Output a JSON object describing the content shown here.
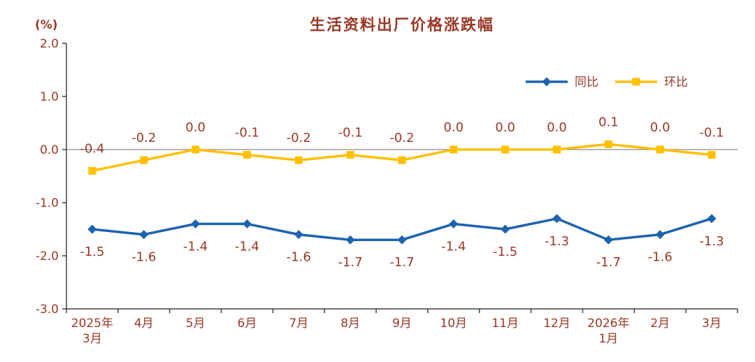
{
  "chart_data": {
    "type": "line",
    "title": "生活资料出厂价格涨跌幅",
    "unit_label": "(%)",
    "categories": [
      "2025年\n3月",
      "4月",
      "5月",
      "6月",
      "7月",
      "8月",
      "9月",
      "10月",
      "11月",
      "12月",
      "2026年\n1月",
      "2月",
      "3月"
    ],
    "series": [
      {
        "key": "yoy",
        "name": "同比",
        "marker": "diamond",
        "color": "#1c63b0",
        "label_position": "below",
        "values": [
          -1.5,
          -1.6,
          -1.4,
          -1.4,
          -1.6,
          -1.7,
          -1.7,
          -1.4,
          -1.5,
          -1.3,
          -1.7,
          -1.6,
          -1.3
        ]
      },
      {
        "key": "mom",
        "name": "环比",
        "marker": "square",
        "color": "#ffc000",
        "label_position": "above",
        "values": [
          -0.4,
          -0.2,
          0.0,
          -0.1,
          -0.2,
          -0.1,
          -0.2,
          0.0,
          0.0,
          0.0,
          0.1,
          0.0,
          -0.1
        ]
      }
    ],
    "ylim": [
      -3.0,
      2.0
    ],
    "yticks": [
      2.0,
      1.0,
      0.0,
      -1.0,
      -2.0,
      -3.0
    ],
    "grid": false,
    "legend_position": "top-right",
    "colors": {
      "text": "#993826",
      "axis": "#404040",
      "zero_line": "#8a8a8a"
    }
  }
}
